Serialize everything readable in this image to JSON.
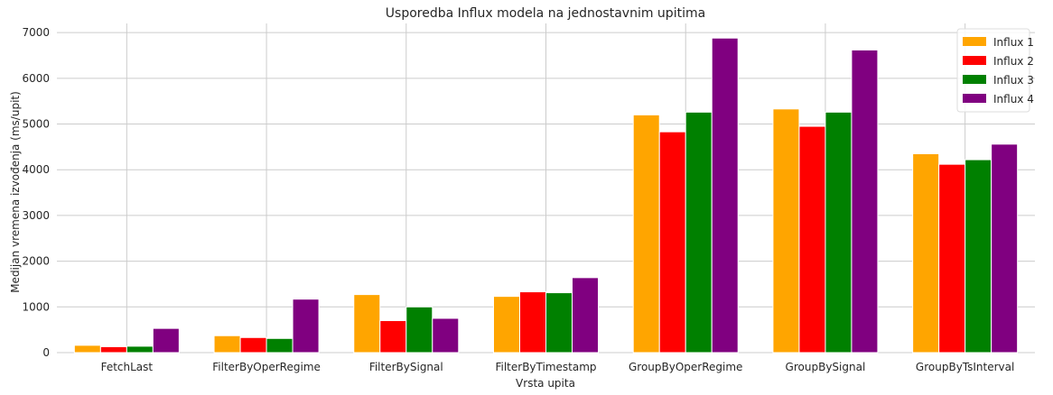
{
  "chart_data": {
    "type": "bar",
    "title": "Usporedba Influx modela na jednostavnim upitima",
    "xlabel": "Vrsta upita",
    "ylabel": "Medijan vremena izvođenja (ms/upit)",
    "categories": [
      "FetchLast",
      "FilterByOperRegime",
      "FilterBySignal",
      "FilterByTimestamp",
      "GroupByOperRegime",
      "GroupBySignal",
      "GroupByTsInterval"
    ],
    "series": [
      {
        "name": "Influx 1",
        "color": "#ffa500",
        "values": [
          160,
          370,
          1270,
          1230,
          5200,
          5330,
          4350
        ]
      },
      {
        "name": "Influx 2",
        "color": "#ff0000",
        "values": [
          130,
          330,
          700,
          1330,
          4830,
          4950,
          4120
        ]
      },
      {
        "name": "Influx 3",
        "color": "#008000",
        "values": [
          140,
          310,
          1000,
          1310,
          5260,
          5260,
          4220
        ]
      },
      {
        "name": "Influx 4",
        "color": "#800080",
        "values": [
          530,
          1170,
          750,
          1640,
          6880,
          6620,
          4560
        ]
      }
    ],
    "ylim": [
      0,
      7200
    ],
    "yticks": [
      0,
      1000,
      2000,
      3000,
      4000,
      5000,
      6000,
      7000
    ],
    "grid": true,
    "legend_position": "top-right"
  }
}
